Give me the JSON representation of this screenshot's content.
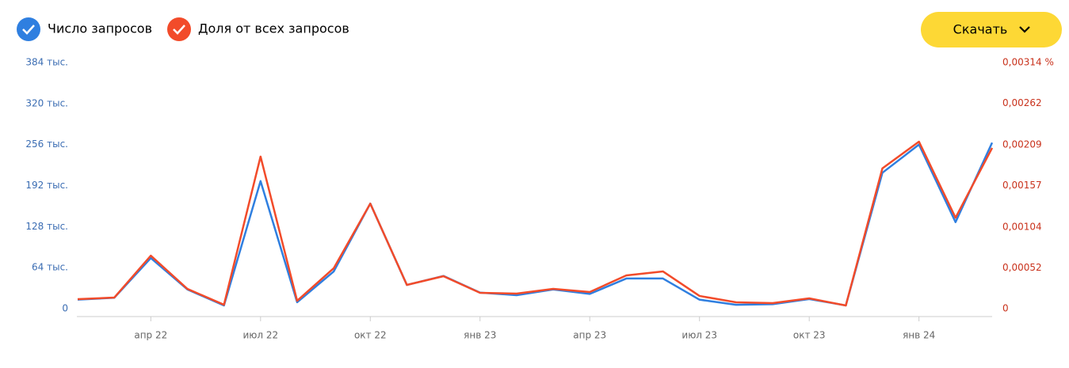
{
  "chart_data": {
    "type": "line",
    "button": "Скачать",
    "categories": [
      null,
      null,
      "апр 22",
      null,
      null,
      "июл 22",
      null,
      null,
      "окт 22",
      null,
      null,
      "янв 23",
      null,
      null,
      "апр 23",
      null,
      null,
      "июл 23",
      null,
      null,
      "окт 23",
      null,
      null,
      "янв 24",
      null,
      null
    ],
    "series": [
      {
        "name": "Число запросов",
        "color": "#2f7fe0",
        "axis": "y",
        "values": [
          14000,
          17000,
          79000,
          30000,
          5000,
          199000,
          10000,
          58000,
          164000,
          37000,
          51000,
          25000,
          21000,
          30000,
          23000,
          47000,
          47000,
          14000,
          6000,
          7000,
          15000,
          5000,
          212000,
          256000,
          135000,
          259000
        ]
      },
      {
        "name": "Доля от всех запросов",
        "color": "#f24b2a",
        "axis": "y2",
        "values": [
          0.000121,
          0.000141,
          0.000676,
          0.000252,
          5e-05,
          0.00194,
          0.0001,
          0.000515,
          0.00134,
          0.000303,
          0.000414,
          0.000202,
          0.000192,
          0.000252,
          0.000212,
          0.000424,
          0.000475,
          0.000162,
          8.1e-05,
          7.1e-05,
          0.000131,
          4e-05,
          0.00179,
          0.00213,
          0.00116,
          0.00205
        ]
      }
    ],
    "ylim": [
      0,
      384000
    ],
    "yticks": [
      0,
      {
        "value": 64000,
        "label": "64 тыс."
      },
      {
        "value": 128000,
        "label": "128 тыс."
      },
      {
        "value": 192000,
        "label": "192 тыс."
      },
      {
        "value": 256000,
        "label": "256 тыс."
      },
      {
        "value": 320000,
        "label": "320 тыс."
      },
      {
        "value": 384000,
        "label": "384 тыс."
      }
    ],
    "y2lim": [
      0,
      0.00314
    ],
    "y2ticks": [
      0,
      {
        "value": 0.00052,
        "label": "0,00052"
      },
      {
        "value": 0.00104,
        "label": "0,00104"
      },
      {
        "value": 0.00157,
        "label": "0,00157"
      },
      {
        "value": 0.00209,
        "label": "0,00209"
      },
      {
        "value": 0.00262,
        "label": "0,00262"
      },
      {
        "value": 0.00314,
        "label": "0,00314 %"
      }
    ]
  }
}
